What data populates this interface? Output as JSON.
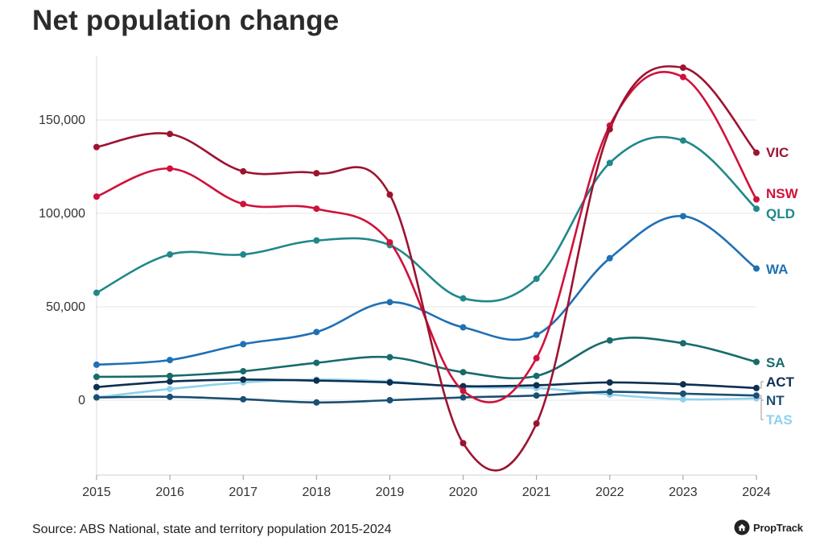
{
  "title": "Net population change",
  "source": "Source: ABS National, state and territory population 2015-2024",
  "brand": "PropTrack",
  "chart_data": {
    "type": "line",
    "x": [
      "2015",
      "2016",
      "2017",
      "2018",
      "2019",
      "2020",
      "2021",
      "2022",
      "2023",
      "2024"
    ],
    "ylim": [
      -40000,
      180000
    ],
    "yticks": [
      0,
      50000,
      100000,
      150000
    ],
    "ytick_labels": [
      "0",
      "50,000",
      "100,000",
      "150,000"
    ],
    "grid": true,
    "series": [
      {
        "name": "TAS",
        "color": "#8fd1ec",
        "values": [
          1500,
          6000,
          9500,
          11000,
          10000,
          7000,
          6500,
          3000,
          500,
          1000
        ]
      },
      {
        "name": "NT",
        "color": "#1b4f72",
        "values": [
          1500,
          1800,
          500,
          -1200,
          0,
          1500,
          2500,
          4500,
          3500,
          2500
        ]
      },
      {
        "name": "ACT",
        "color": "#0d2f50",
        "values": [
          7000,
          10000,
          11000,
          10500,
          9500,
          7500,
          8000,
          9500,
          8500,
          6500
        ]
      },
      {
        "name": "SA",
        "color": "#176b6b",
        "values": [
          12500,
          13000,
          15500,
          20000,
          23000,
          15000,
          13000,
          32000,
          30500,
          20500
        ]
      },
      {
        "name": "WA",
        "color": "#1f70b4",
        "values": [
          19000,
          21500,
          30000,
          36500,
          52500,
          39000,
          35000,
          76000,
          98500,
          70500
        ]
      },
      {
        "name": "QLD",
        "color": "#20888a",
        "values": [
          57500,
          78000,
          78000,
          85500,
          83000,
          54500,
          65000,
          127000,
          139000,
          102500
        ]
      },
      {
        "name": "NSW",
        "color": "#d0113a",
        "values": [
          109000,
          124000,
          105000,
          102500,
          84500,
          5000,
          22500,
          147000,
          173000,
          107500
        ]
      },
      {
        "name": "VIC",
        "color": "#9c1330",
        "values": [
          135500,
          142500,
          122500,
          121500,
          110000,
          -23000,
          -12500,
          145000,
          178000,
          132500
        ]
      }
    ]
  }
}
